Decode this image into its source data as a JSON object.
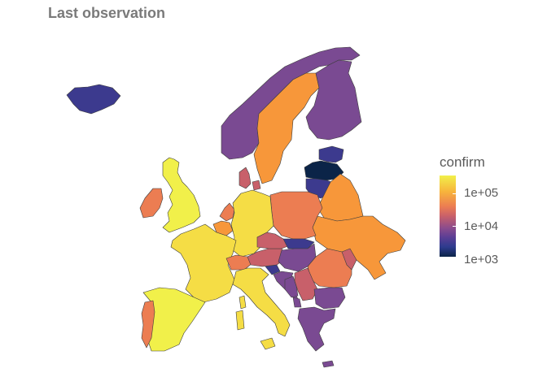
{
  "title": "Last observation",
  "legend": {
    "title": "confirm",
    "ticks": [
      "1e+05",
      "1e+04",
      "1e+03"
    ]
  },
  "colors": {
    "very_high": "#f1f04a",
    "high": "#f5dd45",
    "mid_high": "#f7973a",
    "mid": "#ec7d52",
    "mid_low": "#c8606a",
    "low": "#7a4a92",
    "very_low": "#3c3a8e",
    "lowest": "#0b2448",
    "background": "#ffffff",
    "border": "#3d3d3d"
  },
  "regions": [
    {
      "name": "Iceland",
      "color_key": "very_low"
    },
    {
      "name": "Norway",
      "color_key": "low"
    },
    {
      "name": "Sweden",
      "color_key": "mid_high"
    },
    {
      "name": "Finland",
      "color_key": "low"
    },
    {
      "name": "Estonia",
      "color_key": "very_low"
    },
    {
      "name": "Latvia",
      "color_key": "lowest"
    },
    {
      "name": "Lithuania",
      "color_key": "very_low"
    },
    {
      "name": "Belarus",
      "color_key": "mid_high"
    },
    {
      "name": "Ukraine",
      "color_key": "mid_high"
    },
    {
      "name": "Poland",
      "color_key": "mid"
    },
    {
      "name": "Denmark",
      "color_key": "mid_low"
    },
    {
      "name": "United Kingdom",
      "color_key": "very_high"
    },
    {
      "name": "Ireland",
      "color_key": "mid"
    },
    {
      "name": "Netherlands",
      "color_key": "mid"
    },
    {
      "name": "Belgium",
      "color_key": "mid_high"
    },
    {
      "name": "Germany",
      "color_key": "high"
    },
    {
      "name": "France",
      "color_key": "high"
    },
    {
      "name": "Switzerland",
      "color_key": "mid"
    },
    {
      "name": "Austria",
      "color_key": "mid_low"
    },
    {
      "name": "Czechia",
      "color_key": "mid_low"
    },
    {
      "name": "Slovakia",
      "color_key": "very_low"
    },
    {
      "name": "Hungary",
      "color_key": "low"
    },
    {
      "name": "Slovenia",
      "color_key": "very_low"
    },
    {
      "name": "Croatia",
      "color_key": "low"
    },
    {
      "name": "Romania",
      "color_key": "mid"
    },
    {
      "name": "Moldova",
      "color_key": "mid_low"
    },
    {
      "name": "Serbia",
      "color_key": "mid_low"
    },
    {
      "name": "Bosnia and Herzegovina",
      "color_key": "low"
    },
    {
      "name": "Montenegro",
      "color_key": "low"
    },
    {
      "name": "Bulgaria",
      "color_key": "low"
    },
    {
      "name": "Greece",
      "color_key": "low"
    },
    {
      "name": "Italy",
      "color_key": "high"
    },
    {
      "name": "Spain",
      "color_key": "very_high"
    },
    {
      "name": "Portugal",
      "color_key": "mid"
    }
  ]
}
